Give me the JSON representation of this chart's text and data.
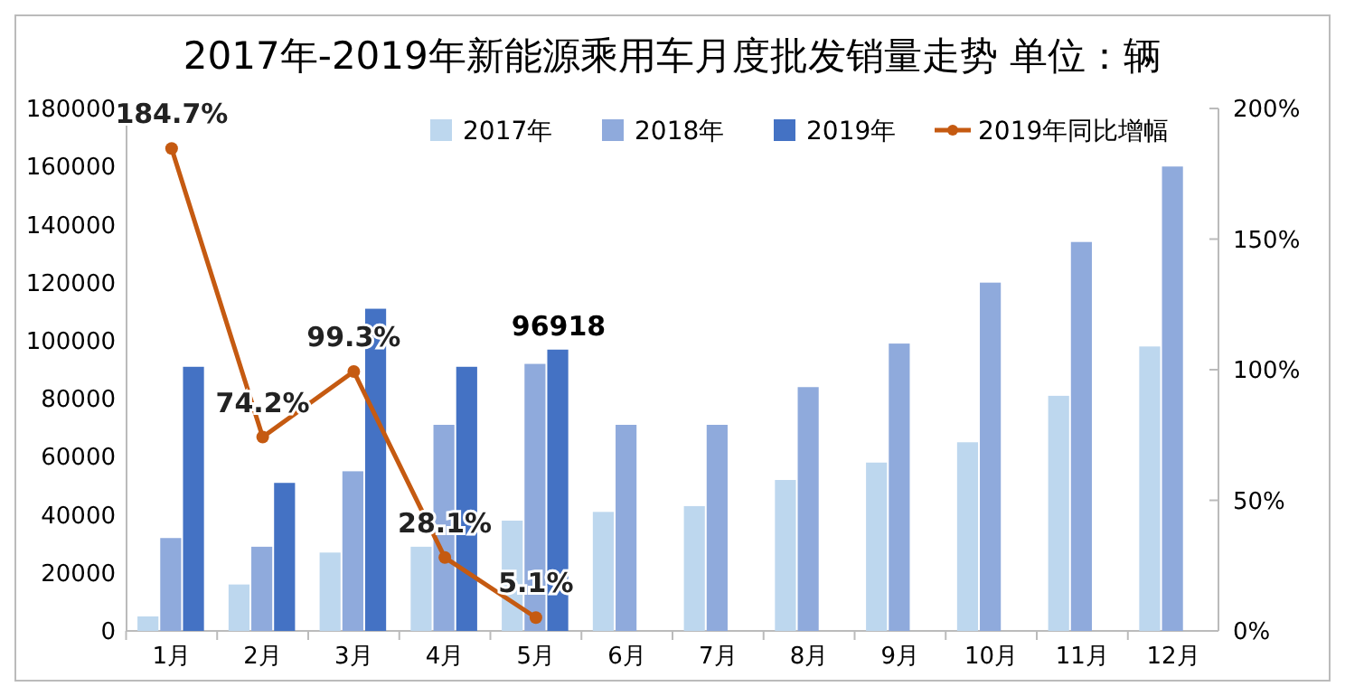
{
  "chart_data": {
    "type": "bar",
    "title": "2017年-2019年新能源乘用车月度批发销量走势  单位：辆",
    "categories": [
      "1月",
      "2月",
      "3月",
      "4月",
      "5月",
      "6月",
      "7月",
      "8月",
      "9月",
      "10月",
      "11月",
      "12月"
    ],
    "series": [
      {
        "name": "2017年",
        "color": "#bdd7ee",
        "values": [
          5000,
          16000,
          27000,
          29000,
          38000,
          41000,
          43000,
          52000,
          58000,
          65000,
          81000,
          98000
        ]
      },
      {
        "name": "2018年",
        "color": "#8faadc",
        "values": [
          32000,
          29000,
          55000,
          71000,
          92000,
          71000,
          71000,
          84000,
          99000,
          120000,
          134000,
          160000
        ]
      },
      {
        "name": "2019年",
        "color": "#4472c4",
        "values": [
          91000,
          51000,
          111000,
          91000,
          96918,
          null,
          null,
          null,
          null,
          null,
          null,
          null
        ],
        "value_labels": [
          null,
          null,
          null,
          null,
          "96918",
          null,
          null,
          null,
          null,
          null,
          null,
          null
        ]
      },
      {
        "name": "2019年同比增幅",
        "type": "line",
        "axis": "y2",
        "color": "#c55a11",
        "marker": "circle",
        "values": [
          184.7,
          74.2,
          99.3,
          28.1,
          5.1,
          null,
          null,
          null,
          null,
          null,
          null,
          null
        ],
        "value_labels": [
          "184.7%",
          "74.2%",
          "99.3%",
          "28.1%",
          "5.1%",
          null,
          null,
          null,
          null,
          null,
          null,
          null
        ]
      }
    ],
    "ylim": [
      0,
      180000
    ],
    "yticks": [
      0,
      20000,
      40000,
      60000,
      80000,
      100000,
      120000,
      140000,
      160000,
      180000
    ],
    "y2lim": [
      0,
      200
    ],
    "y2ticks": [
      {
        "value": 0,
        "label": "0%"
      },
      {
        "value": 50,
        "label": "50%"
      },
      {
        "value": 100,
        "label": "100%"
      },
      {
        "value": 150,
        "label": "150%"
      },
      {
        "value": 200,
        "label": "200%"
      }
    ],
    "legend": "top right",
    "grid": false
  }
}
